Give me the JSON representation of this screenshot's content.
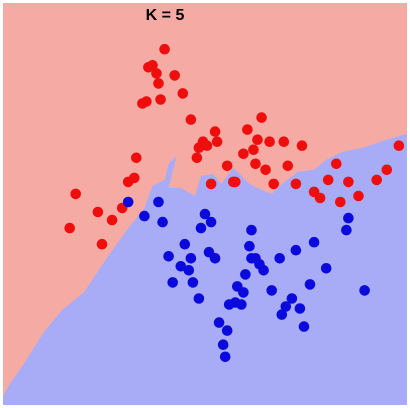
{
  "chart_data": {
    "type": "scatter",
    "title": "K = 5",
    "xlabel": "",
    "ylabel": "",
    "xlim": [
      0,
      100
    ],
    "ylim": [
      0,
      100
    ],
    "grid": false,
    "legend": "none",
    "regions": [
      {
        "name": "class-red",
        "color": "#f5aba4"
      },
      {
        "name": "class-blue",
        "color": "#a8acf6"
      }
    ],
    "decision_boundary": {
      "x": [
        0,
        1.5,
        5,
        10,
        14.5,
        20,
        26,
        31,
        35,
        37,
        40,
        41,
        43,
        41,
        44,
        47.5,
        49,
        52,
        54,
        57,
        59,
        61,
        64,
        66.5,
        69,
        73,
        77,
        80,
        84,
        89,
        95,
        100
      ],
      "y": [
        2,
        5,
        10,
        18,
        23.5,
        28,
        37,
        44,
        49,
        54.5,
        56,
        60,
        62,
        54,
        54,
        52,
        57,
        57.5,
        55,
        59,
        57,
        55,
        53.5,
        52.5,
        55,
        58,
        58.5,
        61,
        63,
        64,
        66,
        67.5
      ]
    },
    "series": [
      {
        "name": "red",
        "color": "#ee0e0e",
        "x": [
          16.5,
          18,
          23.5,
          24.5,
          27,
          29.5,
          31,
          32.5,
          33,
          34.5,
          35.5,
          36,
          37,
          38,
          38.5,
          39,
          40,
          42.5,
          44.5,
          46.5,
          48,
          48.5,
          49.5,
          50.5,
          51.5,
          52.5,
          53,
          55.5,
          57,
          57.5,
          59.5,
          60.5,
          62,
          62.5,
          63,
          64,
          65,
          66,
          67,
          69.5,
          70.5,
          72.5,
          74,
          77,
          78.5,
          80.5,
          82.5,
          83.5,
          85.5,
          88,
          92.5,
          95,
          98
        ],
        "y": [
          44,
          52.5,
          48,
          40,
          46,
          49,
          55.5,
          56.5,
          61.5,
          75,
          75.5,
          84,
          84.5,
          82.5,
          80,
          76,
          88.5,
          82,
          77.5,
          71,
          61.5,
          64,
          65.5,
          64.5,
          55,
          68,
          65.5,
          59.5,
          55.5,
          55.5,
          62.5,
          68.5,
          63.5,
          60,
          66,
          71.5,
          58.5,
          65.5,
          55,
          65.5,
          59.5,
          55,
          64.5,
          53,
          51.5,
          56,
          60,
          50.5,
          55.5,
          52,
          56,
          58.5,
          64.5
        ]
      },
      {
        "name": "blue",
        "color": "#0a0adc",
        "x": [
          31,
          35,
          38.5,
          39.5,
          41,
          42,
          44,
          45,
          46,
          46.5,
          47,
          48.5,
          49,
          50,
          51,
          51.5,
          52.5,
          53.5,
          54.5,
          55,
          55.5,
          56,
          57.5,
          58,
          59,
          59.5,
          60,
          61,
          61.5,
          61.5,
          62.5,
          63.5,
          64.5,
          66.5,
          68.5,
          69,
          70,
          71.5,
          72.5,
          73.5,
          74.5,
          76,
          77,
          80,
          85,
          85.5,
          89.5
        ],
        "y": [
          50.5,
          47,
          50.5,
          45.5,
          37,
          30.5,
          34.5,
          40,
          33.5,
          36.5,
          30.5,
          26.5,
          44,
          47.5,
          38,
          45.5,
          36.5,
          20.5,
          15,
          12,
          18.5,
          25,
          25.5,
          29.5,
          25,
          28,
          32.5,
          39.5,
          36.5,
          43.5,
          36.5,
          35,
          33.5,
          28.5,
          36.5,
          22.5,
          24.5,
          26.5,
          38.5,
          24,
          19.5,
          30,
          40.5,
          34,
          43.5,
          46.5,
          28.5
        ]
      }
    ]
  }
}
